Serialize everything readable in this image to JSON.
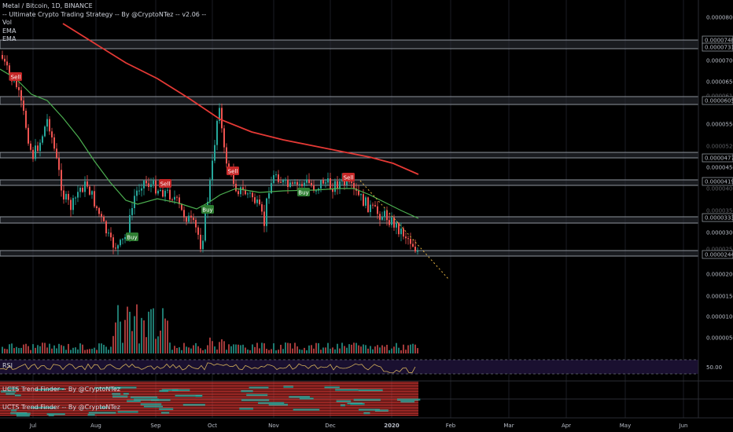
{
  "legend": {
    "title": "Metal / Bitcoin, 1D, BINANCE",
    "strategy": "-- Ultimate Crypto Trading Strategy -- By @CryptoNTez -- v2.06 --",
    "vol": "Vol",
    "ema1": "EMA",
    "ema2": "EMA"
  },
  "panes": {
    "rsi_label": "RSI",
    "rsi_level": "50.00",
    "trend1_label": "UCTS Trend Finder -- By @CryptoNTez",
    "trend2_label": "UCTS Trend Finder -- By @CryptoNTez"
  },
  "price_axis": {
    "ticks": [
      "0.00008000",
      "0.00007000",
      "0.00006500",
      "0.00005500",
      "0.00004500",
      "0.00003000",
      "0.00002000",
      "0.00001500",
      "0.00001000",
      "0.00000500"
    ],
    "levels": [
      "0.00007480",
      "0.00007310",
      "0.00006050",
      "0.00004770",
      "0.00004190",
      "0.00003330",
      "0.00002440"
    ],
    "faint_levels": [
      "0.00006160",
      "0.00005200",
      "0.00004000",
      "0.00003500",
      "0.00002530"
    ]
  },
  "time_axis": [
    "Jul",
    "Aug",
    "Sep",
    "Oct",
    "Nov",
    "Dec",
    "2020",
    "Feb",
    "Mar",
    "Apr",
    "May",
    "Jun"
  ],
  "signals": [
    {
      "label": "Sell",
      "type": "sell"
    },
    {
      "label": "Buy",
      "type": "buy"
    },
    {
      "label": "Sell",
      "type": "sell"
    },
    {
      "label": "Buy",
      "type": "buy"
    },
    {
      "label": "Sell",
      "type": "sell"
    },
    {
      "label": "Buy",
      "type": "buy"
    },
    {
      "label": "Sell",
      "type": "sell"
    }
  ],
  "colors": {
    "up": "#26a69a",
    "down": "#ef5350",
    "ema_fast": "#4caf50",
    "ema_slow": "#e53935",
    "rsi_line": "#d4b15a",
    "rsi_bg": "#1a1030",
    "band": "#9aa0a6",
    "buy": "#2e7d32",
    "sell": "#c62828",
    "trend_red": "#e53935",
    "trend_green": "#26a69a"
  }
}
